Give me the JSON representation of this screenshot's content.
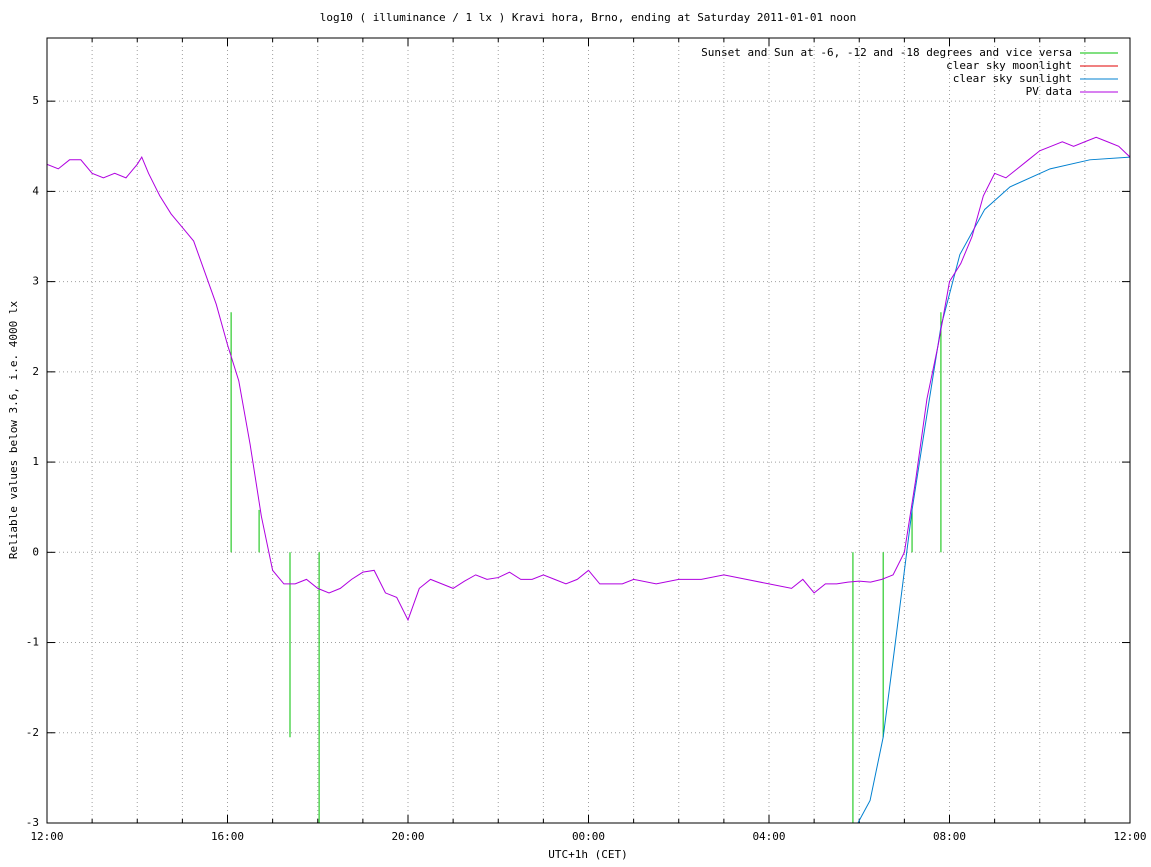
{
  "chart_data": {
    "type": "line",
    "title": "log10 ( illuminance / 1 lx ) Kravi hora, Brno, ending at Saturday 2011-01-01 noon",
    "xlabel": "UTC+1h (CET)",
    "ylabel": "Reliable values below 3.6, i.e. 4000 lx",
    "xlim": [
      0,
      24
    ],
    "ylim": [
      -3,
      5.7
    ],
    "xticks": [
      {
        "value": 0,
        "label": "12:00"
      },
      {
        "value": 4,
        "label": "16:00"
      },
      {
        "value": 8,
        "label": "20:00"
      },
      {
        "value": 12,
        "label": "00:00"
      },
      {
        "value": 16,
        "label": "04:00"
      },
      {
        "value": 20,
        "label": "08:00"
      },
      {
        "value": 24,
        "label": "12:00"
      }
    ],
    "xminorticks": [
      1,
      2,
      3,
      5,
      6,
      7,
      9,
      10,
      11,
      13,
      14,
      15,
      17,
      18,
      19,
      21,
      22,
      23
    ],
    "yticks": [
      -3,
      -2,
      -1,
      0,
      1,
      2,
      3,
      4,
      5
    ],
    "grid": true,
    "legend": "top-right",
    "series": [
      {
        "name": "Sunset and Sun at -6, -12 and -18 degrees and vice versa",
        "color": "#00c000",
        "style": "impulses",
        "x": [
          4.08,
          4.7,
          5.385,
          6.03,
          17.86,
          18.53,
          19.17,
          19.81
        ],
        "values": [
          2.66,
          0.47,
          -2.05,
          -3,
          -3,
          -2.05,
          0.47,
          2.66
        ]
      },
      {
        "name": "clear sky moonlight",
        "color": "#e00000",
        "style": "lines",
        "x": [],
        "values": []
      },
      {
        "name": "clear sky sunlight",
        "color": "#0080d0",
        "style": "lines",
        "x": [
          17.97,
          18.24,
          18.53,
          18.8,
          19.17,
          19.46,
          19.81,
          20.23,
          20.78,
          21.34,
          22.23,
          23.11,
          24
        ],
        "values": [
          -3,
          -2.75,
          -2.05,
          -1.0,
          0.47,
          1.4,
          2.5,
          3.3,
          3.8,
          4.05,
          4.25,
          4.35,
          4.38
        ]
      },
      {
        "name": "PV data",
        "color": "#b000e0",
        "style": "lines",
        "x": [
          0,
          0.25,
          0.5,
          0.75,
          1.0,
          1.25,
          1.5,
          1.75,
          2.0,
          2.1,
          2.25,
          2.5,
          2.75,
          3.0,
          3.25,
          3.5,
          3.75,
          4.0,
          4.25,
          4.5,
          4.75,
          5.0,
          5.25,
          5.5,
          5.75,
          6.0,
          6.25,
          6.5,
          6.75,
          7.0,
          7.25,
          7.5,
          7.75,
          8.0,
          8.25,
          8.5,
          8.75,
          9.0,
          9.25,
          9.5,
          9.75,
          10.0,
          10.25,
          10.5,
          10.75,
          11.0,
          11.25,
          11.5,
          11.75,
          12.0,
          12.25,
          12.5,
          12.75,
          13.0,
          13.5,
          14.0,
          14.5,
          15.0,
          15.5,
          16.0,
          16.5,
          16.75,
          17.0,
          17.25,
          17.5,
          17.75,
          18.0,
          18.25,
          18.5,
          18.75,
          19.0,
          19.25,
          19.5,
          19.75,
          20.0,
          20.25,
          20.5,
          20.75,
          21.0,
          21.25,
          21.5,
          21.75,
          22.0,
          22.25,
          22.5,
          22.75,
          23.0,
          23.25,
          23.5,
          23.75,
          24
        ],
        "values": [
          4.3,
          4.25,
          4.35,
          4.35,
          4.2,
          4.15,
          4.2,
          4.15,
          4.3,
          4.38,
          4.2,
          3.95,
          3.75,
          3.6,
          3.45,
          3.1,
          2.75,
          2.3,
          1.9,
          1.2,
          0.4,
          -0.2,
          -0.35,
          -0.35,
          -0.3,
          -0.4,
          -0.45,
          -0.4,
          -0.3,
          -0.22,
          -0.2,
          -0.45,
          -0.5,
          -0.75,
          -0.4,
          -0.3,
          -0.35,
          -0.4,
          -0.32,
          -0.25,
          -0.3,
          -0.28,
          -0.22,
          -0.3,
          -0.3,
          -0.25,
          -0.3,
          -0.35,
          -0.3,
          -0.2,
          -0.35,
          -0.35,
          -0.35,
          -0.3,
          -0.35,
          -0.3,
          -0.3,
          -0.25,
          -0.3,
          -0.35,
          -0.4,
          -0.3,
          -0.45,
          -0.35,
          -0.35,
          -0.33,
          -0.32,
          -0.33,
          -0.3,
          -0.25,
          0,
          0.8,
          1.7,
          2.3,
          3.0,
          3.2,
          3.5,
          3.95,
          4.2,
          4.15,
          4.25,
          4.35,
          4.45,
          4.5,
          4.55,
          4.5,
          4.55,
          4.6,
          4.55,
          4.5,
          4.38
        ]
      }
    ]
  }
}
